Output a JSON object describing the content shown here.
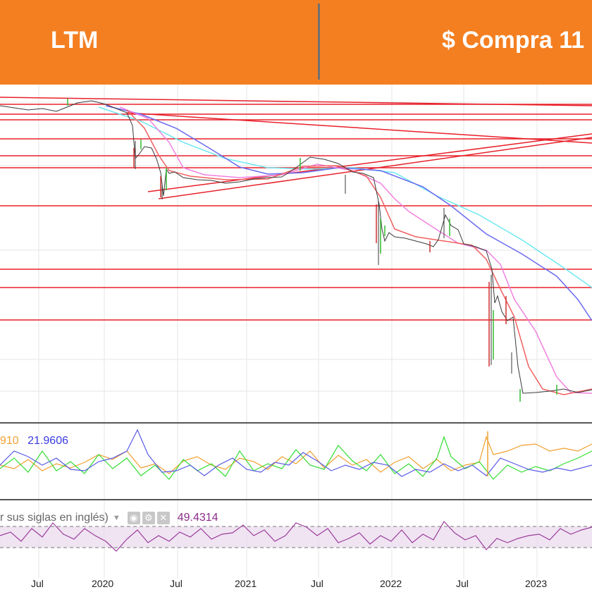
{
  "header": {
    "ticker": "LTM",
    "price_label": "$ Compra 11"
  },
  "indicators": {
    "dmi_orange_value": "910",
    "dmi_blue_value": "21.9606",
    "rsi_label": "r sus siglas en inglés)",
    "rsi_value": "49.4314",
    "rsi_buttons": [
      "eye-icon",
      "gear-icon",
      "close-icon"
    ]
  },
  "x_axis": {
    "labels": [
      "Jul",
      "2020",
      "Jul",
      "2021",
      "Jul",
      "2022",
      "Jul",
      "2023"
    ]
  },
  "colors": {
    "header_bg": "#f47f21",
    "support_lines": "#e8202a",
    "price": "#3a3a3a",
    "ma_red": "#f06060",
    "ma_pink": "#f080e0",
    "ma_blue": "#6a6af0",
    "ma_cyan": "#6ee8f0",
    "dmi_green": "#33dd33",
    "dmi_orange": "#f0a030",
    "dmi_blue": "#5a5ae6",
    "rsi": "#9b3d9b"
  }
}
